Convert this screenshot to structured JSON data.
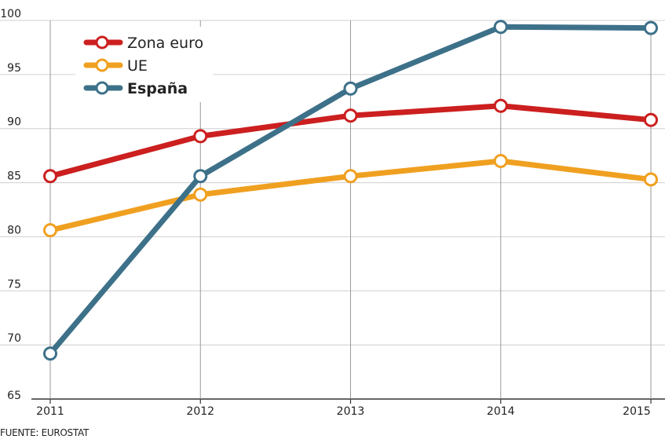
{
  "chart_data": {
    "type": "line",
    "x": [
      "2011",
      "2012",
      "2013",
      "2014",
      "2015"
    ],
    "y_ticks": [
      "65",
      "70",
      "75",
      "80",
      "85",
      "90",
      "95",
      "100"
    ],
    "ylim": [
      65,
      100
    ],
    "grid": "horizontal and vertical",
    "legend_position": "top-left",
    "series": [
      {
        "name": "Zona euro",
        "values": [
          85.6,
          89.3,
          91.2,
          92.1,
          90.8
        ],
        "color": "#cc1f1f",
        "bold": false
      },
      {
        "name": "UE",
        "values": [
          80.6,
          83.9,
          85.6,
          87.0,
          85.3
        ],
        "color": "#f0a020",
        "bold": false
      },
      {
        "name": "España",
        "values": [
          69.2,
          85.6,
          93.7,
          99.4,
          99.3
        ],
        "color": "#3d7189",
        "bold": true
      }
    ],
    "source": "FUENTE: EUROSTAT"
  }
}
